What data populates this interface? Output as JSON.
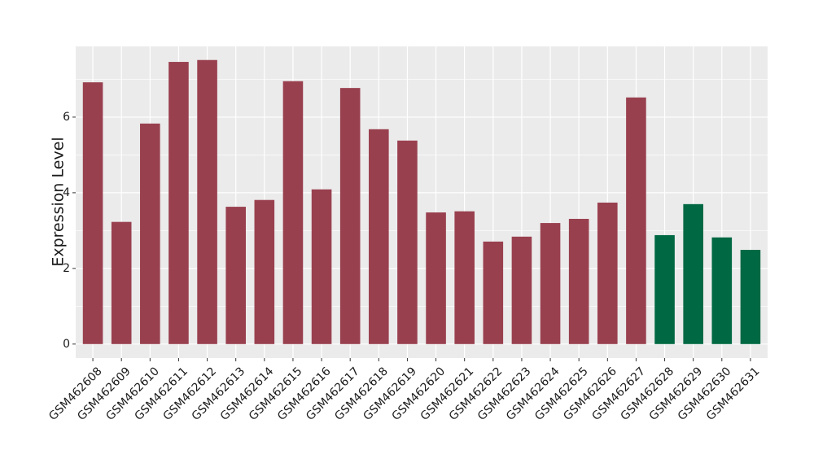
{
  "chart_data": {
    "type": "bar",
    "y_label": "Expression Level",
    "categories": [
      "GSM462608",
      "GSM462609",
      "GSM462610",
      "GSM462611",
      "GSM462612",
      "GSM462613",
      "GSM462614",
      "GSM462615",
      "GSM462616",
      "GSM462617",
      "GSM462618",
      "GSM462619",
      "GSM462620",
      "GSM462621",
      "GSM462622",
      "GSM462623",
      "GSM462624",
      "GSM462625",
      "GSM462626",
      "GSM462627",
      "GSM462628",
      "GSM462629",
      "GSM462630",
      "GSM462631"
    ],
    "values": [
      6.92,
      3.23,
      5.83,
      7.46,
      7.51,
      3.63,
      3.81,
      6.95,
      4.09,
      6.77,
      5.68,
      5.38,
      3.48,
      3.51,
      2.71,
      2.84,
      3.2,
      3.31,
      3.74,
      6.52,
      2.88,
      3.7,
      2.82,
      2.49
    ],
    "colors": [
      "#99404f",
      "#99404f",
      "#99404f",
      "#99404f",
      "#99404f",
      "#99404f",
      "#99404f",
      "#99404f",
      "#99404f",
      "#99404f",
      "#99404f",
      "#99404f",
      "#99404f",
      "#99404f",
      "#99404f",
      "#99404f",
      "#99404f",
      "#99404f",
      "#99404f",
      "#99404f",
      "#006843",
      "#006843",
      "#006843",
      "#006843"
    ],
    "ylim": [
      -0.37,
      7.87
    ],
    "yticks": [
      0,
      2,
      4,
      6
    ],
    "grid": true
  }
}
